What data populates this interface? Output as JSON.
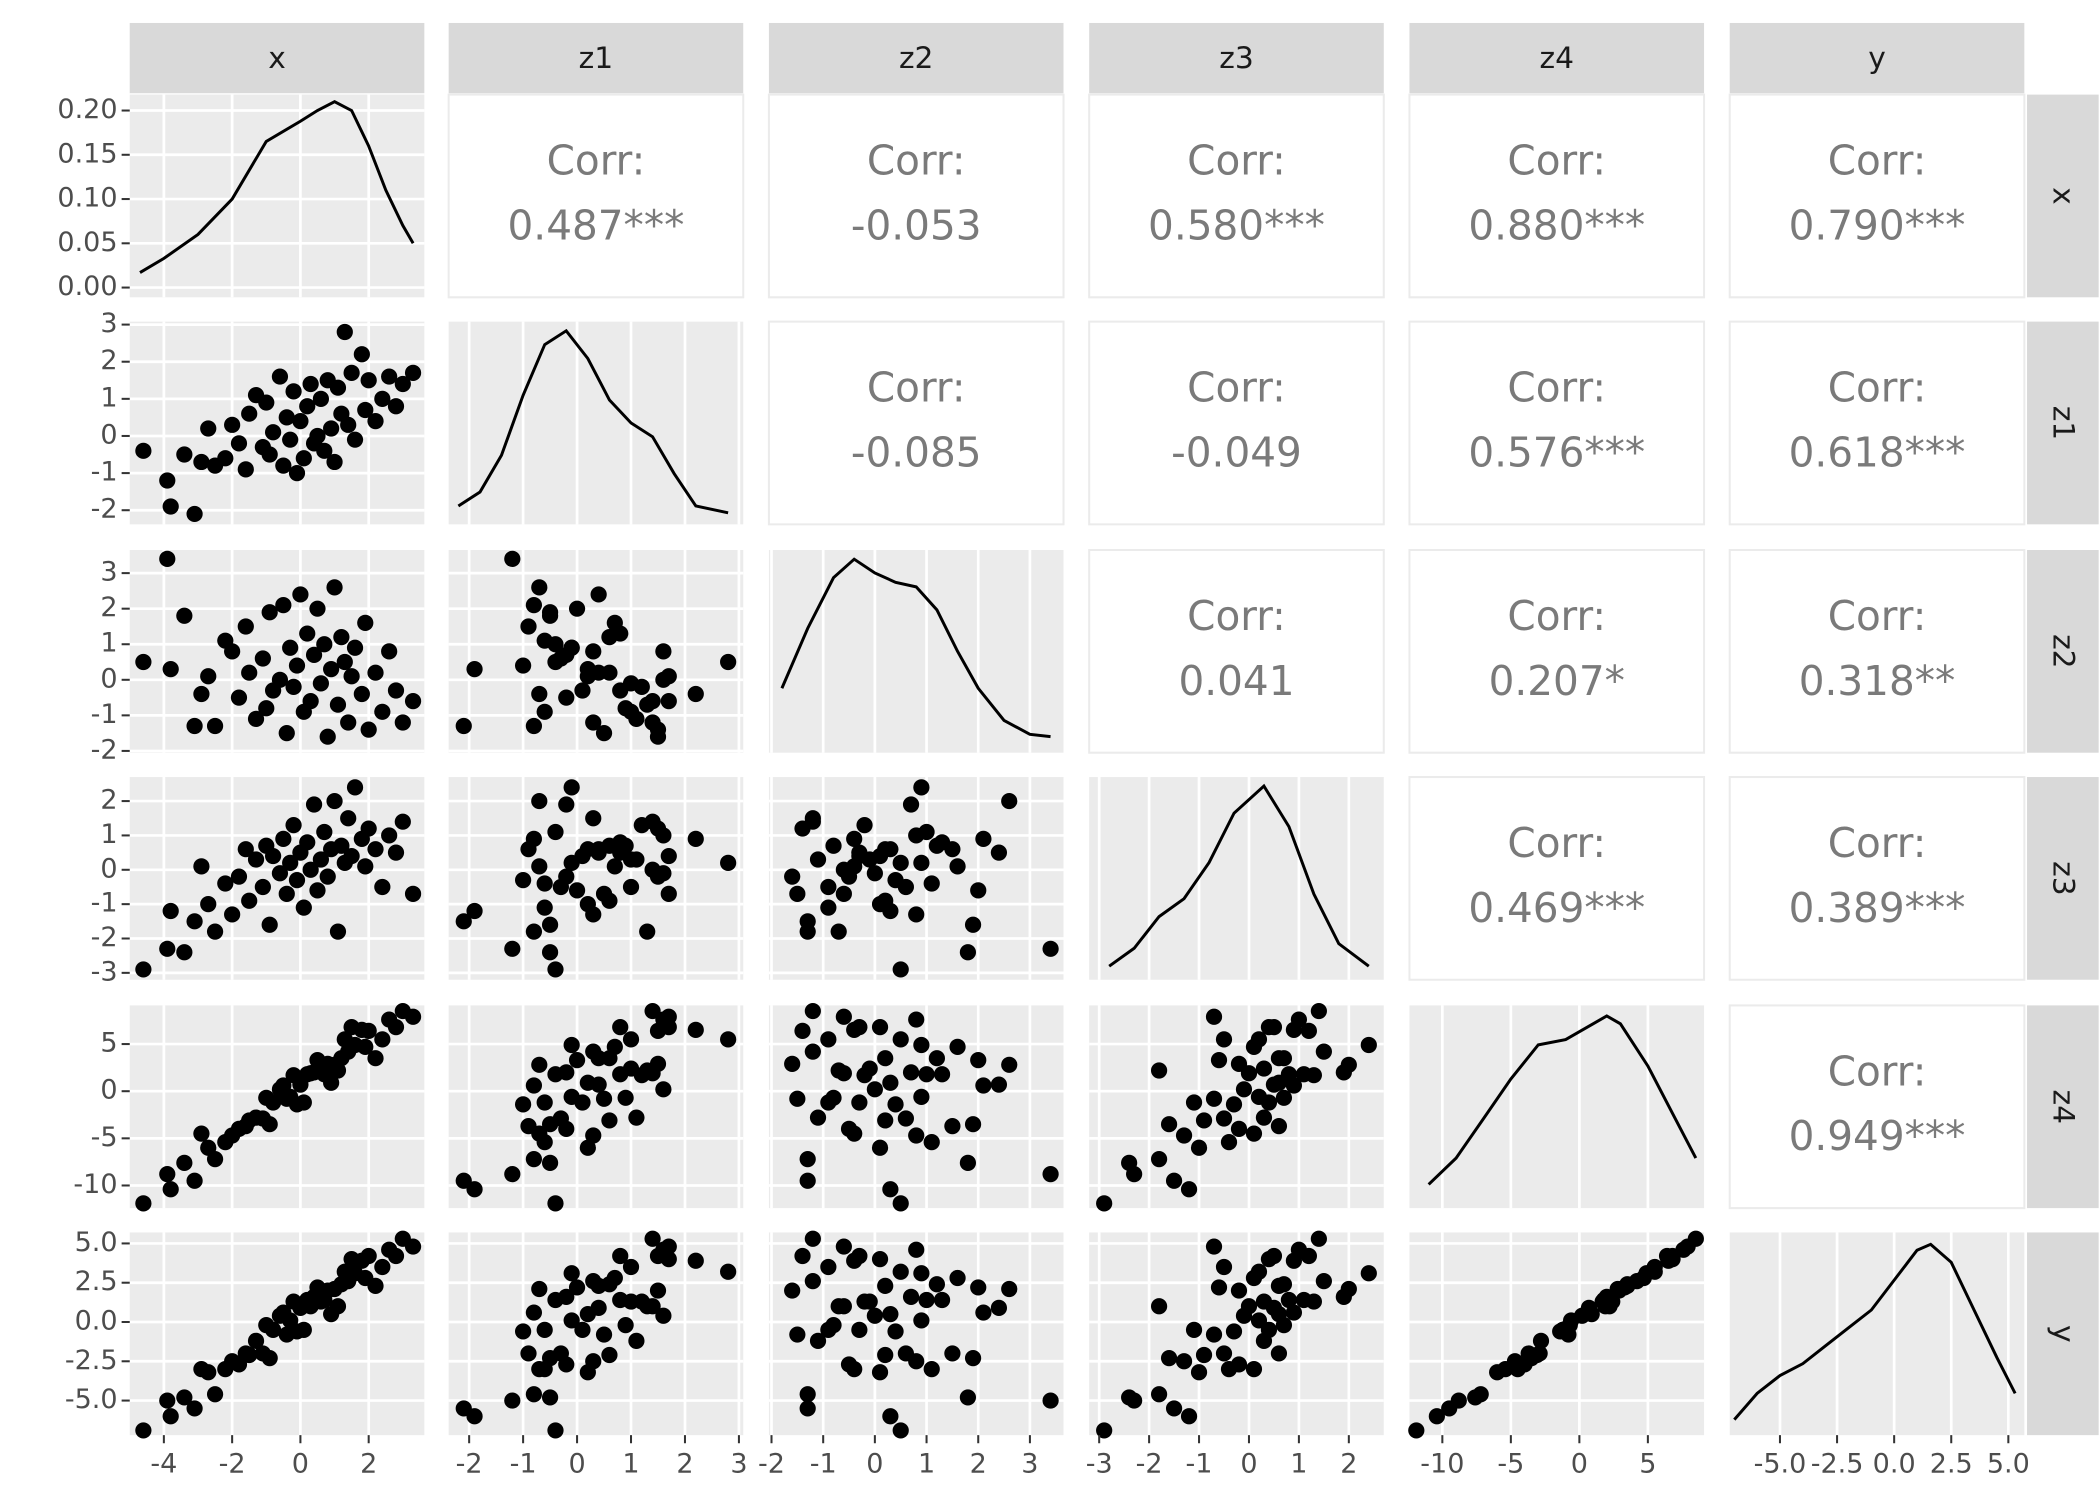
{
  "chart_data": {
    "type": "scatter-matrix",
    "corr_label": "Corr:",
    "variables": [
      {
        "name": "x",
        "lim": [
          -5.0,
          3.63
        ],
        "ticks": [
          -4,
          -2,
          0,
          2
        ],
        "values": [
          -4.6,
          -3.9,
          -3.8,
          -3.4,
          -3.1,
          -2.9,
          -2.7,
          -2.5,
          -2.2,
          -2.0,
          -1.8,
          -1.6,
          -1.5,
          -1.3,
          -1.1,
          -1.0,
          -0.9,
          -0.8,
          -0.6,
          -0.5,
          -0.4,
          -0.3,
          -0.2,
          -0.1,
          0.0,
          0.1,
          0.2,
          0.3,
          0.4,
          0.5,
          0.6,
          0.7,
          0.8,
          0.9,
          1.0,
          1.1,
          1.2,
          1.3,
          1.4,
          1.5,
          1.6,
          1.8,
          1.9,
          2.0,
          2.2,
          2.4,
          2.6,
          2.8,
          3.0,
          3.3
        ],
        "density": {
          "x": [
            -4.7,
            -4,
            -3,
            -2,
            -1,
            0,
            0.5,
            1,
            1.5,
            2,
            2.5,
            3,
            3.3
          ],
          "y": [
            0.017,
            0.033,
            0.06,
            0.1,
            0.165,
            0.188,
            0.2,
            0.21,
            0.2,
            0.16,
            0.11,
            0.07,
            0.05
          ],
          "ylim": [
            -0.011,
            0.218
          ],
          "yticks": [
            {
              "value": 0,
              "label": "0.00"
            },
            0.05,
            {
              "value": 0.1,
              "label": "0.10"
            },
            0.15,
            {
              "value": 0.2,
              "label": "0.20"
            }
          ]
        }
      },
      {
        "name": "z1",
        "lim": [
          -2.38,
          3.08
        ],
        "ticks": [
          -2,
          -1,
          0,
          1,
          2,
          3
        ],
        "values": [
          -0.4,
          -1.2,
          -1.9,
          -0.5,
          -2.1,
          -0.7,
          0.2,
          -0.8,
          -0.6,
          0.3,
          -0.2,
          -0.9,
          0.6,
          1.1,
          -0.3,
          0.9,
          -0.5,
          0.1,
          1.6,
          -0.8,
          0.5,
          -0.1,
          1.2,
          -1.0,
          0.4,
          -0.6,
          0.8,
          1.4,
          -0.2,
          0.0,
          1.0,
          -0.4,
          1.5,
          0.2,
          -0.7,
          1.3,
          0.6,
          2.8,
          0.3,
          1.7,
          -0.1,
          2.2,
          0.7,
          1.5,
          0.4,
          1.0,
          1.6,
          0.8,
          1.4,
          1.7
        ],
        "density": {
          "x": [
            -2.2,
            -1.8,
            -1.4,
            -1,
            -0.6,
            -0.2,
            0.2,
            0.6,
            1,
            1.4,
            1.8,
            2.2,
            2.8
          ],
          "y": [
            0.02,
            0.05,
            0.13,
            0.26,
            0.37,
            0.4,
            0.34,
            0.25,
            0.2,
            0.17,
            0.09,
            0.02,
            0.005
          ],
          "ylim": [
            -0.02,
            0.42
          ]
        }
      },
      {
        "name": "z2",
        "lim": [
          -2.05,
          3.65
        ],
        "ticks": [
          -2,
          -1,
          0,
          1,
          2,
          3
        ],
        "values": [
          0.5,
          3.4,
          0.3,
          1.8,
          -1.3,
          -0.4,
          0.1,
          -1.3,
          1.1,
          0.8,
          -0.5,
          1.5,
          0.2,
          -1.1,
          0.6,
          -0.8,
          1.9,
          -0.3,
          0.0,
          2.1,
          -1.5,
          0.9,
          -0.2,
          0.4,
          2.4,
          -0.9,
          1.3,
          -0.6,
          0.7,
          2.0,
          -0.1,
          1.0,
          -1.6,
          0.3,
          2.6,
          -0.7,
          1.2,
          0.5,
          -1.2,
          0.1,
          0.9,
          -0.4,
          1.6,
          -1.4,
          0.2,
          -0.9,
          0.8,
          -0.3,
          -1.2,
          -0.6
        ],
        "density": {
          "x": [
            -1.8,
            -1.3,
            -0.8,
            -0.4,
            0,
            0.4,
            0.8,
            1.2,
            1.6,
            2,
            2.5,
            3,
            3.4
          ],
          "y": [
            0.12,
            0.25,
            0.36,
            0.4,
            0.37,
            0.35,
            0.34,
            0.29,
            0.2,
            0.12,
            0.05,
            0.02,
            0.015
          ],
          "ylim": [
            -0.02,
            0.42
          ]
        }
      },
      {
        "name": "z3",
        "lim": [
          -3.2,
          2.7
        ],
        "ticks": [
          -3,
          -2,
          -1,
          0,
          1,
          2
        ],
        "values": [
          -2.9,
          -2.3,
          -1.2,
          -2.4,
          -1.5,
          0.1,
          -1.0,
          -1.8,
          -0.4,
          -1.3,
          -0.2,
          0.6,
          -0.9,
          0.3,
          -0.5,
          0.7,
          -1.6,
          0.4,
          -0.1,
          0.9,
          -0.7,
          0.2,
          1.3,
          -0.3,
          0.5,
          -1.1,
          0.8,
          0.0,
          1.9,
          -0.6,
          0.3,
          1.1,
          -0.2,
          0.6,
          2.0,
          -1.8,
          0.7,
          0.2,
          1.5,
          0.4,
          2.4,
          0.9,
          0.1,
          1.2,
          0.6,
          -0.5,
          1.0,
          0.5,
          1.4,
          -0.7
        ],
        "density": {
          "x": [
            -2.8,
            -2.3,
            -1.8,
            -1.3,
            -0.8,
            -0.3,
            0.3,
            0.8,
            1.3,
            1.8,
            2.4
          ],
          "y": [
            0.02,
            0.06,
            0.13,
            0.17,
            0.25,
            0.36,
            0.42,
            0.33,
            0.18,
            0.07,
            0.02
          ],
          "ylim": [
            -0.01,
            0.44
          ]
        }
      },
      {
        "name": "z4",
        "lim": [
          -12.4,
          9.1
        ],
        "ticks": [
          -10,
          -5,
          0,
          5
        ],
        "values": [
          -11.9,
          -8.8,
          -10.4,
          -7.6,
          -9.5,
          -4.5,
          -6.0,
          -7.2,
          -5.4,
          -4.7,
          -4.0,
          -3.7,
          -3.1,
          -2.8,
          -2.9,
          -0.7,
          -3.5,
          -1.2,
          0.2,
          0.6,
          -0.8,
          -0.6,
          1.7,
          -1.4,
          0.7,
          -1.2,
          1.8,
          1.9,
          2.0,
          3.3,
          2.4,
          1.8,
          2.9,
          0.9,
          2.8,
          2.2,
          3.5,
          5.5,
          4.2,
          6.8,
          4.9,
          6.5,
          4.7,
          6.4,
          3.5,
          5.5,
          7.6,
          6.8,
          8.5,
          7.9
        ],
        "density": {
          "x": [
            -11,
            -9,
            -7,
            -5,
            -3,
            -1,
            1,
            2,
            3,
            5,
            7,
            8.5
          ],
          "y": [
            0.005,
            0.015,
            0.03,
            0.045,
            0.058,
            0.06,
            0.066,
            0.069,
            0.066,
            0.05,
            0.03,
            0.015
          ],
          "ylim": [
            -0.004,
            0.073
          ]
        }
      },
      {
        "name": "y",
        "lim": [
          -7.2,
          5.7
        ],
        "ticks": [
          {
            "value": -5,
            "label": "-5.0"
          },
          -2.5,
          {
            "value": 0,
            "label": "0.0"
          },
          2.5,
          {
            "value": 5,
            "label": "5.0"
          }
        ],
        "values": [
          -6.9,
          -5.0,
          -6.0,
          -4.8,
          -5.5,
          -3.0,
          -3.2,
          -4.6,
          -3.0,
          -2.5,
          -2.7,
          -2.0,
          -2.1,
          -1.2,
          -2.0,
          -0.2,
          -2.3,
          -0.5,
          0.4,
          0.6,
          -0.8,
          0.1,
          1.3,
          -0.6,
          0.9,
          -0.5,
          1.4,
          1.0,
          1.6,
          2.2,
          1.3,
          1.4,
          2.0,
          0.5,
          2.1,
          1.0,
          2.4,
          3.2,
          2.6,
          4.0,
          3.1,
          3.9,
          2.8,
          4.2,
          2.3,
          3.5,
          4.6,
          4.2,
          5.3,
          4.8
        ],
        "density": {
          "x": [
            -7,
            -6,
            -5,
            -4,
            -3,
            -2,
            -1,
            0,
            1,
            1.6,
            2.5,
            3.5,
            4.5,
            5.3
          ],
          "y": [
            0.008,
            0.03,
            0.045,
            0.055,
            0.07,
            0.085,
            0.1,
            0.125,
            0.15,
            0.155,
            0.14,
            0.1,
            0.06,
            0.03
          ],
          "ylim": [
            -0.005,
            0.165
          ]
        }
      }
    ],
    "correlations": [
      [
        "0.487***",
        "-0.053",
        "0.580***",
        "0.880***",
        "0.790***"
      ],
      [
        "-0.085",
        "-0.049",
        "0.576***",
        "0.618***"
      ],
      [
        "0.041",
        "0.207*",
        "0.318**"
      ],
      [
        "0.469***",
        "0.389***"
      ],
      [
        "0.949***"
      ]
    ]
  }
}
